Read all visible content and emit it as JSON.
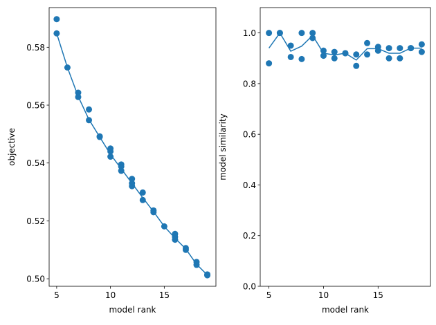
{
  "chart_data": [
    {
      "type": "scatter",
      "xlabel": "model rank",
      "ylabel": "objective",
      "xlim": [
        4.3,
        19.8
      ],
      "ylim": [
        0.4974,
        0.5937
      ],
      "xticks": [
        5,
        10,
        15
      ],
      "yticks": [
        {
          "value": 0.5,
          "label": "0.50"
        },
        0.52,
        0.54,
        0.56,
        0.58
      ],
      "series": [
        {
          "style": "marker",
          "color": "#1f77b4",
          "x": [
            5,
            5,
            6,
            7,
            7,
            8,
            8,
            9,
            9,
            10,
            10,
            10,
            11,
            11,
            11,
            12,
            12,
            12,
            13,
            13,
            14,
            14,
            15,
            16,
            16,
            16,
            17,
            17,
            18,
            18,
            19,
            19
          ],
          "values": [
            0.5897,
            0.5848,
            0.573,
            0.5643,
            0.5628,
            0.5585,
            0.5548,
            0.5492,
            0.549,
            0.545,
            0.544,
            0.5422,
            0.5395,
            0.5388,
            0.5373,
            0.5345,
            0.533,
            0.532,
            0.5298,
            0.5272,
            0.5236,
            0.523,
            0.5181,
            0.5155,
            0.5145,
            0.5135,
            0.5106,
            0.51,
            0.5058,
            0.5048,
            0.5015,
            0.5012
          ]
        },
        {
          "style": "line",
          "color": "#1f77b4",
          "x": [
            5,
            6,
            7,
            8,
            9,
            10,
            11,
            12,
            13,
            14,
            15,
            16,
            17,
            18,
            19
          ],
          "values": [
            0.5848,
            0.573,
            0.563,
            0.555,
            0.549,
            0.543,
            0.538,
            0.533,
            0.528,
            0.5232,
            0.5181,
            0.514,
            0.5103,
            0.505,
            0.5013
          ]
        }
      ]
    },
    {
      "type": "scatter",
      "xlabel": "model rank",
      "ylabel": "model similarity",
      "xlim": [
        4.2,
        19.8
      ],
      "ylim": [
        0,
        1.1
      ],
      "xticks": [
        5,
        10,
        15
      ],
      "yticks": [
        {
          "value": 0,
          "label": "0.0"
        },
        0.2,
        0.4,
        0.6,
        0.8,
        {
          "value": 1,
          "label": "1.0"
        }
      ],
      "series": [
        {
          "style": "marker",
          "color": "#1f77b4",
          "x": [
            5,
            5,
            6,
            6,
            7,
            7,
            8,
            8,
            9,
            9,
            10,
            10,
            11,
            11,
            12,
            12,
            13,
            13,
            14,
            14,
            15,
            15,
            16,
            16,
            17,
            17,
            18,
            18,
            19,
            19
          ],
          "values": [
            1.0,
            0.88,
            1.0,
            1.0,
            0.95,
            0.905,
            1.0,
            0.897,
            1.0,
            0.98,
            0.93,
            0.91,
            0.925,
            0.9,
            0.92,
            0.92,
            0.915,
            0.87,
            0.96,
            0.915,
            0.945,
            0.93,
            0.94,
            0.9,
            0.94,
            0.9,
            0.94,
            0.94,
            0.955,
            0.925
          ]
        },
        {
          "style": "line",
          "color": "#1f77b4",
          "x": [
            5,
            6,
            7,
            8,
            9,
            10,
            11,
            12,
            13,
            14,
            15,
            16,
            17,
            18,
            19
          ],
          "values": [
            0.94,
            1.0,
            0.928,
            0.948,
            0.99,
            0.92,
            0.913,
            0.92,
            0.893,
            0.938,
            0.938,
            0.92,
            0.92,
            0.94,
            0.94
          ]
        }
      ]
    }
  ]
}
